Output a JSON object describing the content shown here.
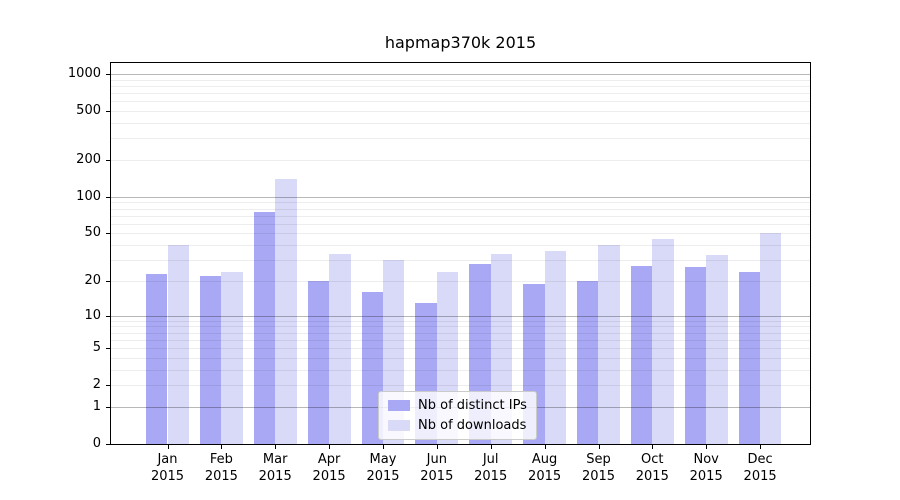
{
  "chart_data": {
    "type": "bar",
    "title": "hapmap370k 2015",
    "year_label": "2015",
    "categories": [
      "Jan",
      "Feb",
      "Mar",
      "Apr",
      "May",
      "Jun",
      "Jul",
      "Aug",
      "Sep",
      "Oct",
      "Nov",
      "Dec"
    ],
    "series": [
      {
        "name": "Nb of distinct IPs",
        "color": "#a8a8f4",
        "values": [
          23,
          22,
          75,
          20,
          16,
          13,
          28,
          19,
          20,
          27,
          26,
          24
        ]
      },
      {
        "name": "Nb of downloads",
        "color": "#d9d9f8",
        "values": [
          40,
          24,
          140,
          34,
          30,
          24,
          34,
          36,
          40,
          45,
          33,
          50
        ]
      }
    ],
    "xlabel": "",
    "ylabel": "",
    "y_scale": "log10(1+y)",
    "y_ticks": [
      0,
      1,
      2,
      5,
      10,
      20,
      50,
      100,
      200,
      500,
      1000
    ],
    "major_grid_values": [
      1,
      10,
      100,
      1000
    ],
    "ylim": [
      0,
      1225
    ],
    "grid": "horizontal major+minor, drawn above bars",
    "legend_position": "lower center",
    "axis_color": "#000000",
    "background_color": "#ffffff"
  }
}
